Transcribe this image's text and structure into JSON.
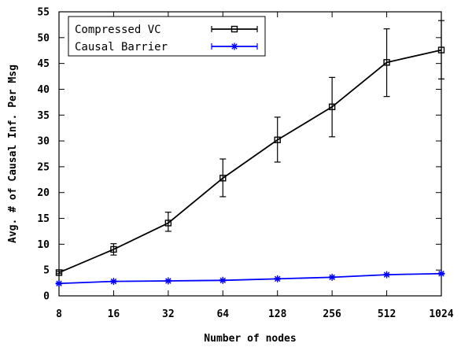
{
  "chart_data": {
    "type": "line",
    "categories": [
      "8",
      "16",
      "32",
      "64",
      "128",
      "256",
      "512",
      "1024"
    ],
    "xlabel": "Number of nodes",
    "ylabel": "Avg. # of Causal Inf. Per Msg",
    "ylim": [
      0,
      55
    ],
    "yticks": [
      0,
      5,
      10,
      15,
      20,
      25,
      30,
      35,
      40,
      45,
      50,
      55
    ],
    "legend_position": "top-left",
    "grid": false,
    "series": [
      {
        "name": "Compressed VC",
        "color": "#000000",
        "marker": "square",
        "values": [
          4.5,
          9.0,
          14.1,
          22.8,
          30.2,
          36.6,
          45.2,
          47.6
        ],
        "err_low": [
          4.3,
          7.9,
          12.5,
          19.2,
          25.9,
          30.8,
          38.6,
          42.0
        ],
        "err_high": [
          4.7,
          10.1,
          16.2,
          26.5,
          34.6,
          42.3,
          51.7,
          53.3
        ]
      },
      {
        "name": "Causal Barrier",
        "color": "#0000ff",
        "marker": "asterisk",
        "values": [
          2.4,
          2.8,
          2.9,
          3.0,
          3.3,
          3.6,
          4.1,
          4.3
        ],
        "err_low": [
          2.3,
          2.7,
          2.8,
          2.9,
          3.2,
          3.5,
          4.0,
          4.2
        ],
        "err_high": [
          2.5,
          2.9,
          3.0,
          3.1,
          3.4,
          3.7,
          4.2,
          4.4
        ]
      }
    ]
  }
}
